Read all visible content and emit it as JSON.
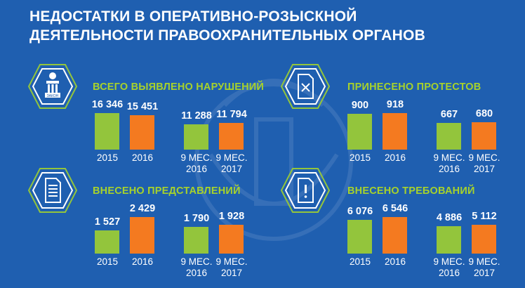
{
  "title_lines": [
    "НЕДОСТАТКИ В ОПЕРАТИВНО-РОЗЫСКНОЙ",
    "ДЕЯТЕЛЬНОСТИ ПРАВООХРАНИТЕЛЬНЫХ ОРГАНОВ"
  ],
  "icon_texts": {
    "prosecutor_plate": "ЗАКОН"
  },
  "colors": {
    "background": "#1f5fb0",
    "accent_green": "#93c53c",
    "accent_orange": "#f47a20",
    "heading": "#a7d22b"
  },
  "panels": [
    {
      "heading": "ВСЕГО ВЫЯВЛЕНО НАРУШЕНИЙ",
      "icon": "prosecutor-building-icon",
      "bars": [
        {
          "value": "16 346",
          "num": 16346,
          "label1": "2015",
          "label2": "",
          "color": "green"
        },
        {
          "value": "15 451",
          "num": 15451,
          "label1": "2016",
          "label2": "",
          "color": "orange"
        },
        {
          "value": "11 288",
          "num": 11288,
          "label1": "9 МЕС.",
          "label2": "2016",
          "color": "green"
        },
        {
          "value": "11 794",
          "num": 11794,
          "label1": "9 МЕС.",
          "label2": "2017",
          "color": "orange"
        }
      ]
    },
    {
      "heading": "ПРИНЕСЕНО ПРОТЕСТОВ",
      "icon": "rejected-document-icon",
      "bars": [
        {
          "value": "900",
          "num": 900,
          "label1": "2015",
          "label2": "",
          "color": "green"
        },
        {
          "value": "918",
          "num": 918,
          "label1": "2016",
          "label2": "",
          "color": "orange"
        },
        {
          "value": "667",
          "num": 667,
          "label1": "9 МЕС.",
          "label2": "2016",
          "color": "green"
        },
        {
          "value": "680",
          "num": 680,
          "label1": "9 МЕС.",
          "label2": "2017",
          "color": "orange"
        }
      ]
    },
    {
      "heading": "ВНЕСЕНО ПРЕДСТАВЛЕНИЙ",
      "icon": "document-list-icon",
      "bars": [
        {
          "value": "1 527",
          "num": 1527,
          "label1": "2015",
          "label2": "",
          "color": "green"
        },
        {
          "value": "2 429",
          "num": 2429,
          "label1": "2016",
          "label2": "",
          "color": "orange"
        },
        {
          "value": "1 790",
          "num": 1790,
          "label1": "9 МЕС.",
          "label2": "2016",
          "color": "green"
        },
        {
          "value": "1 928",
          "num": 1928,
          "label1": "9 МЕС.",
          "label2": "2017",
          "color": "orange"
        }
      ]
    },
    {
      "heading": "ВНЕСЕНО ТРЕБОВАНИЙ",
      "icon": "alert-document-icon",
      "bars": [
        {
          "value": "6 076",
          "num": 6076,
          "label1": "2015",
          "label2": "",
          "color": "green"
        },
        {
          "value": "6 546",
          "num": 6546,
          "label1": "2016",
          "label2": "",
          "color": "orange"
        },
        {
          "value": "4 886",
          "num": 4886,
          "label1": "9 МЕС.",
          "label2": "2016",
          "color": "green"
        },
        {
          "value": "5 112",
          "num": 5112,
          "label1": "9 МЕС.",
          "label2": "2017",
          "color": "orange"
        }
      ]
    }
  ]
}
